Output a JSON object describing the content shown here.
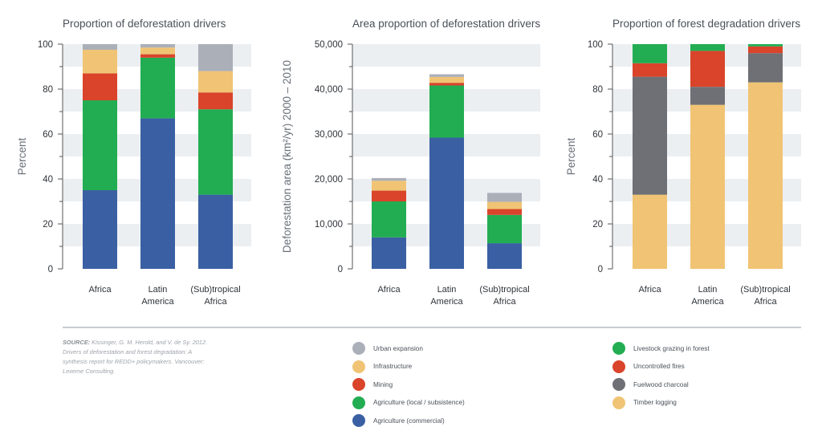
{
  "colors": {
    "urban": "#abafb8",
    "infra": "#f0c474",
    "mining": "#d9442a",
    "agri_local": "#22ad52",
    "agri_comm": "#3a60a3",
    "livestock": "#22ad52",
    "fires": "#d9442a",
    "charcoal": "#6e7075",
    "timber": "#f0c474",
    "band": "#eceff2",
    "axis": "#555555"
  },
  "chart_data": [
    {
      "type": "bar",
      "stacked": true,
      "title": "Proportion of deforestation drivers",
      "ylabel": "Percent",
      "xlabel": "",
      "ylim": [
        0,
        100
      ],
      "yticks": [
        0,
        20,
        40,
        60,
        80,
        100
      ],
      "ytick_labels": [
        "0",
        "20",
        "40",
        "60",
        "80",
        "100"
      ],
      "categories": [
        [
          "Africa"
        ],
        [
          "Latin",
          "America"
        ],
        [
          "(Sub)tropical",
          "Africa"
        ]
      ],
      "series": [
        {
          "name": "Agriculture (commercial)",
          "color_key": "agri_comm",
          "values": [
            35,
            67,
            33
          ]
        },
        {
          "name": "Agriculture (local / subsistence)",
          "color_key": "agri_local",
          "values": [
            40,
            27,
            38
          ]
        },
        {
          "name": "Mining",
          "color_key": "mining",
          "values": [
            12,
            1.5,
            7.5
          ]
        },
        {
          "name": "Infrastructure",
          "color_key": "infra",
          "values": [
            10.5,
            3,
            9.5
          ]
        },
        {
          "name": "Urban expansion",
          "color_key": "urban",
          "values": [
            2.5,
            1.5,
            12
          ]
        }
      ]
    },
    {
      "type": "bar",
      "stacked": true,
      "title": "Area proportion of deforestation drivers",
      "ylabel": "Deforestation area (km²/yr) 2000 – 2010",
      "xlabel": "",
      "ylim": [
        0,
        50000
      ],
      "yticks": [
        0,
        10000,
        20000,
        30000,
        40000,
        50000
      ],
      "ytick_labels": [
        "0",
        "10,000",
        "20,000",
        "30,000",
        "40,000",
        "50,000"
      ],
      "categories": [
        [
          "Africa"
        ],
        [
          "Latin",
          "America"
        ],
        [
          "(Sub)tropical",
          "Africa"
        ]
      ],
      "series": [
        {
          "name": "Agriculture (commercial)",
          "color_key": "agri_comm",
          "values": [
            7000,
            29200,
            5700
          ]
        },
        {
          "name": "Agriculture (local / subsistence)",
          "color_key": "agri_local",
          "values": [
            8000,
            11600,
            6300
          ]
        },
        {
          "name": "Mining",
          "color_key": "mining",
          "values": [
            2400,
            600,
            1300
          ]
        },
        {
          "name": "Infrastructure",
          "color_key": "infra",
          "values": [
            2200,
            1300,
            1600
          ]
        },
        {
          "name": "Urban expansion",
          "color_key": "urban",
          "values": [
            600,
            600,
            2000
          ]
        }
      ]
    },
    {
      "type": "bar",
      "stacked": true,
      "title": "Proportion of forest degradation drivers",
      "ylabel": "Percent",
      "xlabel": "",
      "ylim": [
        0,
        100
      ],
      "yticks": [
        0,
        20,
        40,
        60,
        80,
        100
      ],
      "ytick_labels": [
        "0",
        "20",
        "40",
        "60",
        "80",
        "100"
      ],
      "categories": [
        [
          "Africa"
        ],
        [
          "Latin",
          "America"
        ],
        [
          "(Sub)tropical",
          "Africa"
        ]
      ],
      "series": [
        {
          "name": "Timber logging",
          "color_key": "timber",
          "values": [
            33,
            73,
            83
          ]
        },
        {
          "name": "Fuelwood charcoal",
          "color_key": "charcoal",
          "values": [
            52.5,
            8,
            13
          ]
        },
        {
          "name": "Uncontrolled fires",
          "color_key": "fires",
          "values": [
            6,
            16,
            3
          ]
        },
        {
          "name": "Livestock grazing in forest",
          "color_key": "livestock",
          "values": [
            8.5,
            3,
            1
          ]
        }
      ]
    }
  ],
  "source": {
    "label": "SOURCE:",
    "text": "Kissinger, G. M. Herold, and V. de Sy. 2012. Drivers of deforestation and forest degradation: A synthesis report for REDD+ policymakers. Vancouver: Lexeme Consulting."
  },
  "legend_left": [
    {
      "label": "Urban expansion",
      "color_key": "urban"
    },
    {
      "label": "Infrastructure",
      "color_key": "infra"
    },
    {
      "label": "Mining",
      "color_key": "mining"
    },
    {
      "label": "Agriculture (local / subsistence)",
      "color_key": "agri_local"
    },
    {
      "label": "Agriculture (commercial)",
      "color_key": "agri_comm"
    }
  ],
  "legend_right": [
    {
      "label": "Livestock grazing in forest",
      "color_key": "livestock"
    },
    {
      "label": "Uncontrolled fires",
      "color_key": "fires"
    },
    {
      "label": "Fuelwood charcoal",
      "color_key": "charcoal"
    },
    {
      "label": "Timber logging",
      "color_key": "timber"
    }
  ]
}
